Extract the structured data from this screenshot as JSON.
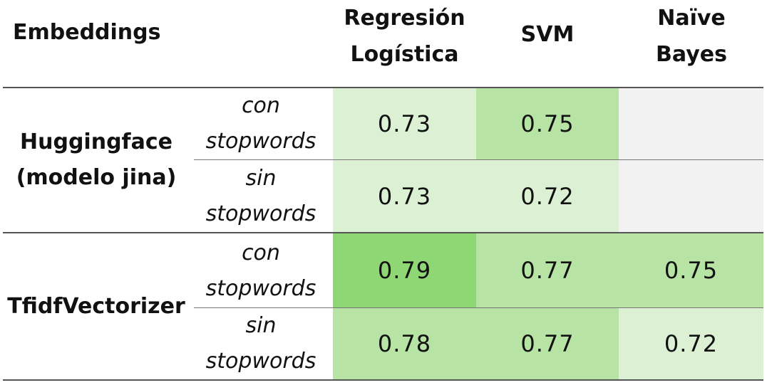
{
  "header": {
    "embeddings": "Embeddings",
    "col1": "Regresión Logística",
    "col2": "SVM",
    "col3": "Naïve Bayes"
  },
  "groups": [
    {
      "name": "Huggingface (modelo jina)",
      "rows": [
        {
          "label": "con stopwords",
          "values": [
            "0.73",
            "0.75",
            ""
          ]
        },
        {
          "label": "sin stopwords",
          "values": [
            "0.73",
            "0.72",
            ""
          ]
        }
      ]
    },
    {
      "name": "TfidfVectorizer",
      "rows": [
        {
          "label": "con stopwords",
          "values": [
            "0.79",
            "0.77",
            "0.75"
          ]
        },
        {
          "label": "sin stopwords",
          "values": [
            "0.78",
            "0.77",
            "0.72"
          ]
        }
      ]
    }
  ],
  "colors": {
    "light": "#dcf0d3",
    "mid": "#b7e3a4",
    "dark": "#8fd674",
    "empty": "#f2f2f2"
  }
}
